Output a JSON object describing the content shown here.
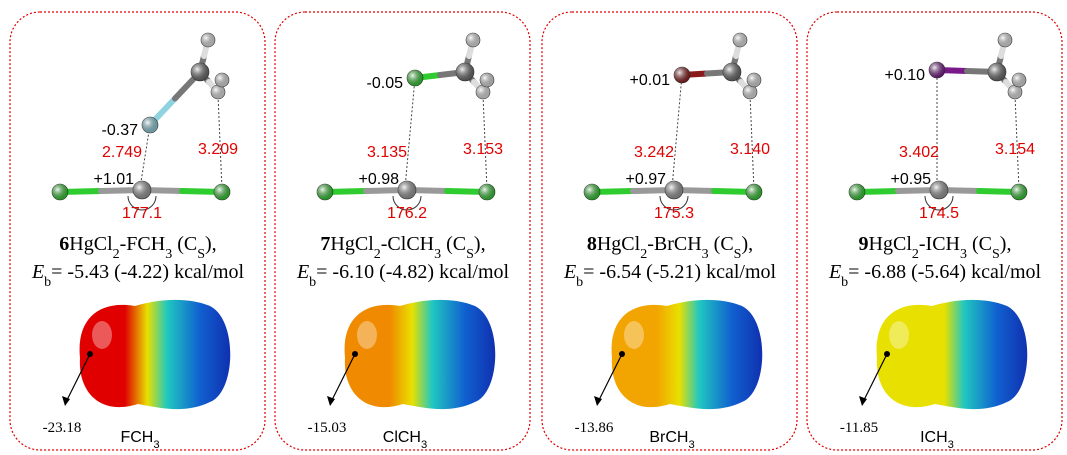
{
  "panels": [
    {
      "number": "6",
      "caption": [
        {
          "text": "HgCl"
        },
        {
          "text": "2",
          "sub": true
        },
        {
          "text": "-FCH"
        },
        {
          "text": "3",
          "sub": true
        },
        {
          "text": " (C"
        },
        {
          "text": "S",
          "sub": true
        },
        {
          "text": "),"
        }
      ],
      "energy": "= -5.43 (-4.22) kcal/mol",
      "halogen_charge": "-0.37",
      "hg_charge": "+1.01",
      "distance_x": "2.749",
      "distance_h": "3.209",
      "angle": "177.1",
      "esp_min": "-23.18",
      "molecule": [
        {
          "text": "FCH"
        },
        {
          "text": "3",
          "sub": true
        }
      ],
      "halogen_color": "#8fd3e0",
      "esp_color": "#e00000"
    },
    {
      "number": "7",
      "caption": [
        {
          "text": "HgCl"
        },
        {
          "text": "2",
          "sub": true
        },
        {
          "text": "-ClCH"
        },
        {
          "text": "3",
          "sub": true
        },
        {
          "text": " (C"
        },
        {
          "text": "S",
          "sub": true
        },
        {
          "text": "),"
        }
      ],
      "energy": "= -6.10 (-4.82) kcal/mol",
      "halogen_charge": "-0.05",
      "hg_charge": "+0.98",
      "distance_x": "3.135",
      "distance_h": "3.153",
      "angle": "176.2",
      "esp_min": "-15.03",
      "molecule": [
        {
          "text": "ClCH"
        },
        {
          "text": "3",
          "sub": true
        }
      ],
      "halogen_color": "#2ecc2e",
      "esp_color": "#f08a00"
    },
    {
      "number": "8",
      "caption": [
        {
          "text": "HgCl"
        },
        {
          "text": "2",
          "sub": true
        },
        {
          "text": "-BrCH"
        },
        {
          "text": "3",
          "sub": true
        },
        {
          "text": " (C"
        },
        {
          "text": "S",
          "sub": true
        },
        {
          "text": "),"
        }
      ],
      "energy": "= -6.54 (-5.21) kcal/mol",
      "halogen_charge": "+0.01",
      "hg_charge": "+0.97",
      "distance_x": "3.242",
      "distance_h": "3.140",
      "angle": "175.3",
      "esp_min": "-13.86",
      "molecule": [
        {
          "text": "BrCH"
        },
        {
          "text": "3",
          "sub": true
        }
      ],
      "halogen_color": "#8b1a1a",
      "esp_color": "#f2a400"
    },
    {
      "number": "9",
      "caption": [
        {
          "text": "HgCl"
        },
        {
          "text": "2",
          "sub": true
        },
        {
          "text": "-ICH"
        },
        {
          "text": "3",
          "sub": true
        },
        {
          "text": " (C"
        },
        {
          "text": "S",
          "sub": true
        },
        {
          "text": "),"
        }
      ],
      "energy": "= -6.88 (-5.64) kcal/mol",
      "halogen_charge": "+0.10",
      "hg_charge": "+0.95",
      "distance_x": "3.402",
      "distance_h": "3.154",
      "angle": "174.5",
      "esp_min": "-11.85",
      "molecule": [
        {
          "text": "ICH"
        },
        {
          "text": "3",
          "sub": true
        }
      ],
      "halogen_color": "#7a1a8a",
      "esp_color": "#e8e000"
    }
  ],
  "energy_symbol": [
    {
      "text": "E",
      "italic": true
    },
    {
      "text": "b",
      "sub": true
    }
  ]
}
